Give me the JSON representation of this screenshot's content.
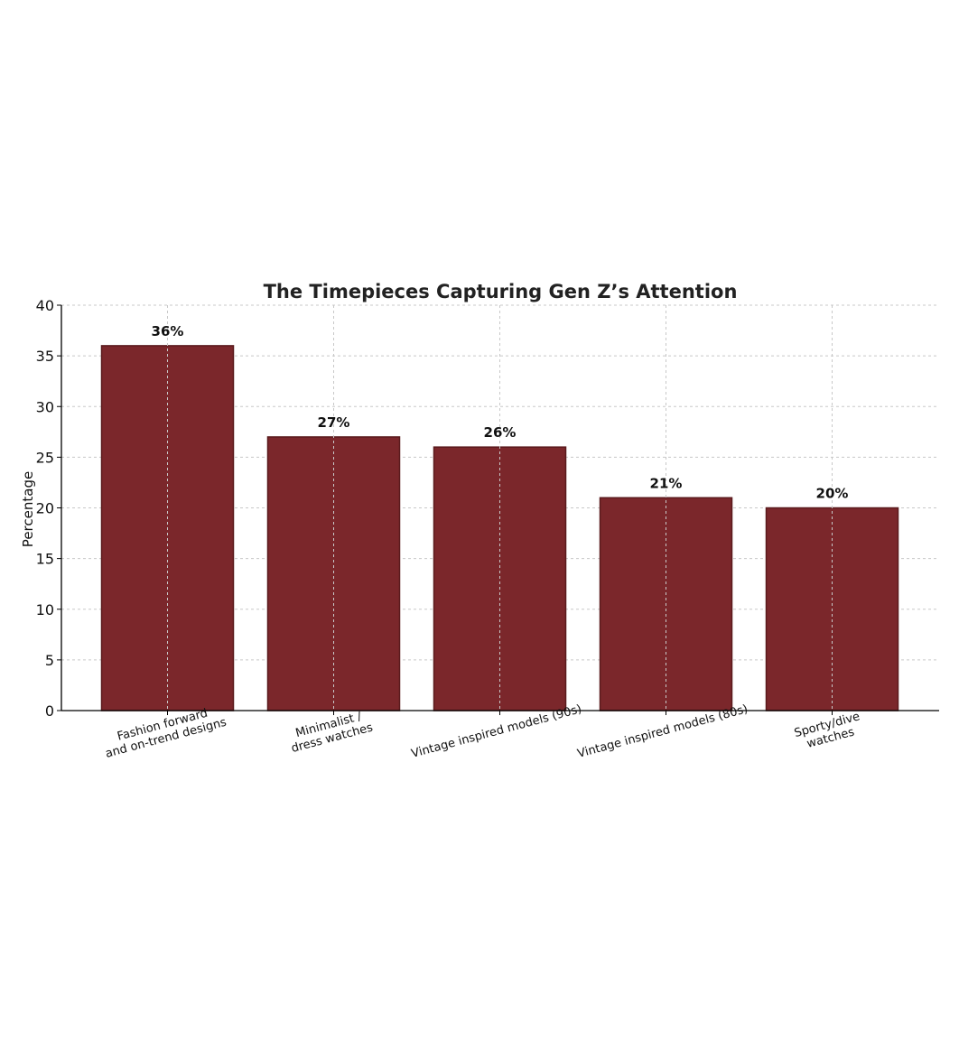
{
  "chart_data": {
    "type": "bar",
    "title": "The Timepieces Capturing Gen Z’s Attention",
    "xlabel": "",
    "ylabel": "Percentage",
    "ylim": [
      0,
      40
    ],
    "yticks": [
      0,
      5,
      10,
      15,
      20,
      25,
      30,
      35,
      40
    ],
    "grid": true,
    "categories": [
      [
        "Fashion forward",
        "and on-trend designs"
      ],
      [
        "Minimalist /",
        "dress watches"
      ],
      [
        "Vintage inspired models (90s)"
      ],
      [
        "Vintage inspired models (80s)"
      ],
      [
        "Sporty/dive",
        "watches"
      ]
    ],
    "values": [
      36,
      27,
      26,
      21,
      20
    ],
    "data_labels": [
      "36%",
      "27%",
      "26%",
      "21%",
      "20%"
    ],
    "bar_color": "#7b272b",
    "bar_edge_color": "#5a1a1d"
  }
}
